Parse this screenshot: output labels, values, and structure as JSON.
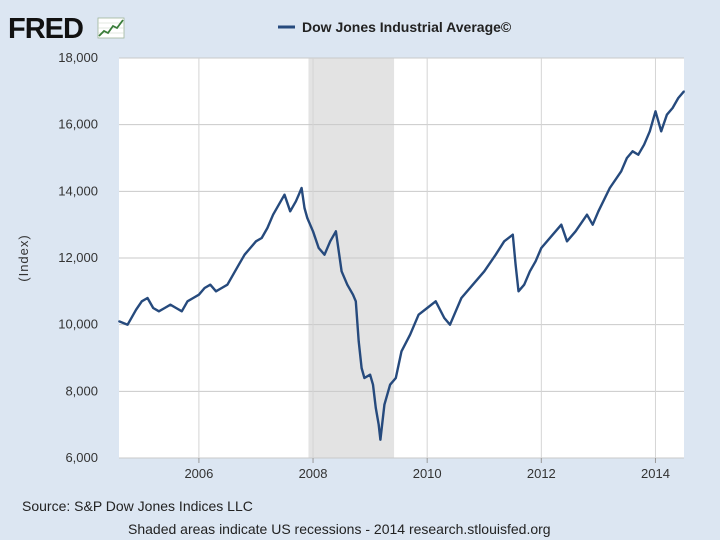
{
  "brand": {
    "logo_text": "FRED"
  },
  "chart_data": {
    "type": "line",
    "title": "Dow Jones Industrial Average©",
    "series": [
      {
        "name": "Dow Jones Industrial Average©",
        "color": "#264a7d",
        "x": [
          2004.6,
          2004.75,
          2004.9,
          2005.0,
          2005.1,
          2005.2,
          2005.3,
          2005.4,
          2005.5,
          2005.6,
          2005.7,
          2005.8,
          2005.9,
          2006.0,
          2006.1,
          2006.2,
          2006.3,
          2006.4,
          2006.5,
          2006.6,
          2006.7,
          2006.8,
          2006.9,
          2007.0,
          2007.1,
          2007.2,
          2007.3,
          2007.4,
          2007.5,
          2007.6,
          2007.7,
          2007.75,
          2007.8,
          2007.85,
          2007.9,
          2008.0,
          2008.1,
          2008.2,
          2008.3,
          2008.4,
          2008.5,
          2008.6,
          2008.7,
          2008.75,
          2008.8,
          2008.85,
          2008.9,
          2009.0,
          2009.05,
          2009.1,
          2009.15,
          2009.18,
          2009.25,
          2009.35,
          2009.45,
          2009.55,
          2009.7,
          2009.85,
          2010.0,
          2010.15,
          2010.3,
          2010.4,
          2010.5,
          2010.6,
          2010.8,
          2011.0,
          2011.2,
          2011.35,
          2011.5,
          2011.55,
          2011.6,
          2011.7,
          2011.8,
          2011.9,
          2012.0,
          2012.2,
          2012.35,
          2012.45,
          2012.6,
          2012.8,
          2012.9,
          2013.0,
          2013.2,
          2013.4,
          2013.5,
          2013.6,
          2013.7,
          2013.8,
          2013.9,
          2014.0,
          2014.1,
          2014.2,
          2014.3,
          2014.4,
          2014.5
        ],
        "values": [
          10100,
          10000,
          10450,
          10700,
          10800,
          10500,
          10400,
          10500,
          10600,
          10500,
          10400,
          10700,
          10800,
          10900,
          11100,
          11200,
          11000,
          11100,
          11200,
          11500,
          11800,
          12100,
          12300,
          12500,
          12600,
          12900,
          13300,
          13600,
          13900,
          13400,
          13700,
          13900,
          14100,
          13500,
          13200,
          12800,
          12300,
          12100,
          12500,
          12800,
          11600,
          11200,
          10900,
          10700,
          9500,
          8700,
          8400,
          8500,
          8200,
          7500,
          7000,
          6550,
          7600,
          8200,
          8400,
          9200,
          9700,
          10300,
          10500,
          10700,
          10200,
          10000,
          10400,
          10800,
          11200,
          11600,
          12100,
          12500,
          12700,
          11800,
          11000,
          11200,
          11600,
          11900,
          12300,
          12700,
          13000,
          12500,
          12800,
          13300,
          13000,
          13400,
          14100,
          14600,
          15000,
          15200,
          15100,
          15400,
          15800,
          16400,
          15800,
          16300,
          16500,
          16800,
          17000
        ]
      }
    ],
    "xlim": [
      2004.6,
      2014.5
    ],
    "ylim": [
      6000,
      18000
    ],
    "xticks": [
      2006,
      2008,
      2010,
      2012,
      2014
    ],
    "yticks": [
      6000,
      8000,
      10000,
      12000,
      14000,
      16000,
      18000
    ],
    "ytick_labels": [
      "6,000",
      "8,000",
      "10,000",
      "12,000",
      "14,000",
      "16,000",
      "18,000"
    ],
    "xlabel": "",
    "ylabel": "(Index)",
    "grid": true,
    "recession_bands": [
      {
        "start": 2007.92,
        "end": 2009.42
      }
    ],
    "recession_color": "#e3e3e3",
    "legend_placement": "top-center"
  },
  "footer": {
    "source": "Source: S&P Dow Jones Indices LLC",
    "note": "Shaded areas indicate US recessions - 2014 research.stlouisfed.org"
  }
}
